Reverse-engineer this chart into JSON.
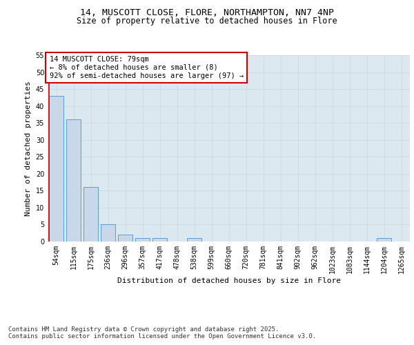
{
  "title_line1": "14, MUSCOTT CLOSE, FLORE, NORTHAMPTON, NN7 4NP",
  "title_line2": "Size of property relative to detached houses in Flore",
  "xlabel": "Distribution of detached houses by size in Flore",
  "ylabel": "Number of detached properties",
  "bar_color": "#c8d8e8",
  "bar_edge_color": "#5b9bd5",
  "categories": [
    "54sqm",
    "115sqm",
    "175sqm",
    "236sqm",
    "296sqm",
    "357sqm",
    "417sqm",
    "478sqm",
    "538sqm",
    "599sqm",
    "660sqm",
    "720sqm",
    "781sqm",
    "841sqm",
    "902sqm",
    "962sqm",
    "1023sqm",
    "1083sqm",
    "1144sqm",
    "1204sqm",
    "1265sqm"
  ],
  "values": [
    43,
    36,
    16,
    5,
    2,
    1,
    1,
    0,
    1,
    0,
    0,
    0,
    0,
    0,
    0,
    0,
    0,
    0,
    0,
    1,
    0
  ],
  "ylim": [
    0,
    55
  ],
  "yticks": [
    0,
    5,
    10,
    15,
    20,
    25,
    30,
    35,
    40,
    45,
    50,
    55
  ],
  "annotation_text": "14 MUSCOTT CLOSE: 79sqm\n← 8% of detached houses are smaller (8)\n92% of semi-detached houses are larger (97) →",
  "annotation_box_color": "#ffffff",
  "annotation_box_edge": "#cc0000",
  "grid_color": "#d0d8e0",
  "background_color": "#dce8f0",
  "footer_text": "Contains HM Land Registry data © Crown copyright and database right 2025.\nContains public sector information licensed under the Open Government Licence v3.0.",
  "vline_color": "#cc0000",
  "title_fontsize": 9.5,
  "subtitle_fontsize": 8.5,
  "tick_fontsize": 7,
  "label_fontsize": 8,
  "annotation_fontsize": 7.5,
  "footer_fontsize": 6.5
}
